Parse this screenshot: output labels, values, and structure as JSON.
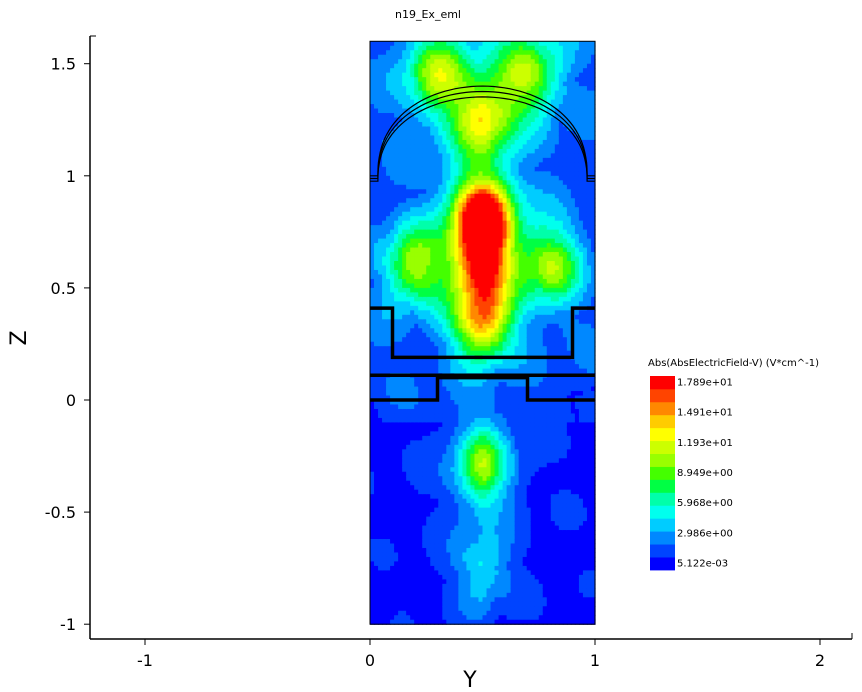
{
  "chart_data": {
    "type": "heatmap",
    "title": "n19_Ex_eml",
    "xlabel": "Y",
    "ylabel": "Z",
    "xlim": [
      -1.25,
      2.15
    ],
    "ylim": [
      -1.07,
      1.63
    ],
    "x_ticks": [
      {
        "value": -1,
        "label": "-1"
      },
      {
        "value": 0,
        "label": "0"
      },
      {
        "value": 1,
        "label": "1"
      },
      {
        "value": 2,
        "label": "2"
      }
    ],
    "y_ticks": [
      {
        "value": 1.5,
        "label": "1.5"
      },
      {
        "value": 1,
        "label": "1"
      },
      {
        "value": 0.5,
        "label": "0.5"
      },
      {
        "value": 0,
        "label": "0"
      },
      {
        "value": -0.5,
        "label": "-0.5"
      },
      {
        "value": -1,
        "label": "-1"
      }
    ],
    "domain": {
      "y_range": [
        0,
        1
      ],
      "z_range": [
        -1,
        1.6
      ]
    },
    "colorbar": {
      "title": "Abs(AbsElectricField-V) (V*cm^-1)",
      "min": 0.005122,
      "max": 17.89,
      "labels": [
        "1.789e+01",
        "1.491e+01",
        "1.193e+01",
        "8.949e+00",
        "5.968e+00",
        "2.986e+00",
        "5.122e-03"
      ],
      "colors": [
        "#0000ff",
        "#0044ff",
        "#0088ff",
        "#00ccff",
        "#00ffee",
        "#00ffaa",
        "#00ff44",
        "#44ff00",
        "#99ff00",
        "#ccff00",
        "#ffff00",
        "#ffcc00",
        "#ff8800",
        "#ff4400",
        "#ff0000"
      ]
    },
    "field_hotspots": [
      {
        "y": 0.5,
        "z": 0.82,
        "magnitude": 17.89
      },
      {
        "y": 0.5,
        "z": 0.6,
        "magnitude": 12.5
      },
      {
        "y": 0.5,
        "z": 0.35,
        "magnitude": 11.5
      },
      {
        "y": 0.2,
        "z": 0.6,
        "magnitude": 8.5
      },
      {
        "y": 0.8,
        "z": 0.6,
        "magnitude": 8.5
      },
      {
        "y": 0.5,
        "z": 1.25,
        "magnitude": 9.5
      },
      {
        "y": 0.3,
        "z": 1.45,
        "magnitude": 8.0
      },
      {
        "y": 0.7,
        "z": 1.45,
        "magnitude": 8.0
      },
      {
        "y": 0.5,
        "z": -0.3,
        "magnitude": 8.5
      },
      {
        "y": 0.5,
        "z": -0.75,
        "magnitude": 4.0
      },
      {
        "y": 0.05,
        "z": 0.25,
        "magnitude": 0.5
      },
      {
        "y": 0.95,
        "z": 0.25,
        "magnitude": 0.5
      }
    ],
    "structure_outlines": [
      {
        "name": "lens",
        "type": "dome",
        "z_base": 1.0,
        "z_top": 1.4,
        "y_left": 0.0,
        "y_right": 1.0
      },
      {
        "name": "upper-layer",
        "type": "polyline",
        "points": [
          [
            0,
            0.41
          ],
          [
            0.1,
            0.41
          ],
          [
            0.1,
            0.19
          ],
          [
            0.9,
            0.19
          ],
          [
            0.9,
            0.41
          ],
          [
            1,
            0.41
          ]
        ]
      },
      {
        "name": "lower-layer",
        "type": "polyline",
        "points": [
          [
            0,
            0.11
          ],
          [
            1,
            0.11
          ]
        ]
      },
      {
        "name": "substrate-step",
        "type": "polyline",
        "points": [
          [
            0,
            0.0
          ],
          [
            0.3,
            0.0
          ],
          [
            0.3,
            0.1
          ],
          [
            0.7,
            0.1
          ],
          [
            0.7,
            0.0
          ],
          [
            1,
            0.0
          ]
        ]
      }
    ]
  }
}
